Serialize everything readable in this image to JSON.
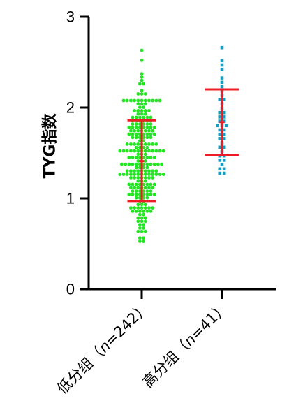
{
  "chart_data": {
    "type": "scatter",
    "chart_kind": "dot-plot-with-mean-sd",
    "ylabel": "TYG指数",
    "ylim": [
      0,
      3
    ],
    "yticks": [
      0,
      1,
      2,
      3
    ],
    "ytick_labels": [
      "0",
      "1",
      "2",
      "3"
    ],
    "categories": [
      "低分组（n=242）",
      "高分组（n=41）"
    ],
    "category_label_parts": [
      {
        "prefix": "低分组（",
        "n_symbol": "n",
        "suffix": "=242）"
      },
      {
        "prefix": "高分组（",
        "n_symbol": "n",
        "suffix": "=41）"
      }
    ],
    "series": [
      {
        "category": "低分组（n=242）",
        "n": 242,
        "color": "#22e622",
        "marker": "circle",
        "mean": 1.41,
        "sd_lower": 0.97,
        "sd_upper": 1.86,
        "value_range": [
          0.52,
          2.63
        ]
      },
      {
        "category": "高分组（n=41）",
        "n": 41,
        "color": "#1a9bbf",
        "marker": "square",
        "mean": 1.84,
        "sd_lower": 1.48,
        "sd_upper": 2.2,
        "values": [
          2.67,
          2.52,
          2.48,
          2.41,
          2.33,
          2.3,
          2.22,
          2.17,
          2.13,
          2.11,
          2.07,
          2.04,
          2.0,
          1.96,
          1.93,
          1.9,
          1.88,
          1.86,
          1.84,
          1.82,
          1.8,
          1.78,
          1.76,
          1.74,
          1.72,
          1.7,
          1.67,
          1.64,
          1.61,
          1.58,
          1.55,
          1.52,
          1.49,
          1.46,
          1.43,
          1.4,
          1.37,
          1.34,
          1.31,
          1.28,
          1.26
        ]
      }
    ],
    "error_bar_color": "#ee1c24",
    "axis_color": "#000000",
    "grid": false,
    "legend": "none"
  }
}
